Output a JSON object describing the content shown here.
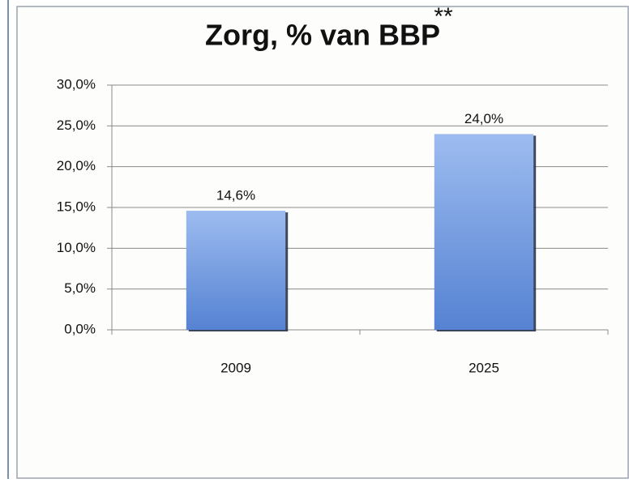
{
  "chart_data": {
    "type": "bar",
    "title": "Zorg, % van BBP",
    "annotations": [
      "**"
    ],
    "categories": [
      "2009",
      "2025"
    ],
    "values": [
      14.6,
      24.0
    ],
    "value_labels": [
      "14,6%",
      "24,0%"
    ],
    "color": "#6f97e0",
    "ylim": [
      0,
      30
    ],
    "yticks": [
      {
        "value": 0,
        "label": "0,0%"
      },
      {
        "value": 5,
        "label": "5,0%"
      },
      {
        "value": 10,
        "label": "10,0%"
      },
      {
        "value": 15,
        "label": "15,0%"
      },
      {
        "value": 20,
        "label": "20,0%"
      },
      {
        "value": 25,
        "label": "25,0%"
      },
      {
        "value": 30,
        "label": "30,0%"
      }
    ],
    "grid": true
  }
}
